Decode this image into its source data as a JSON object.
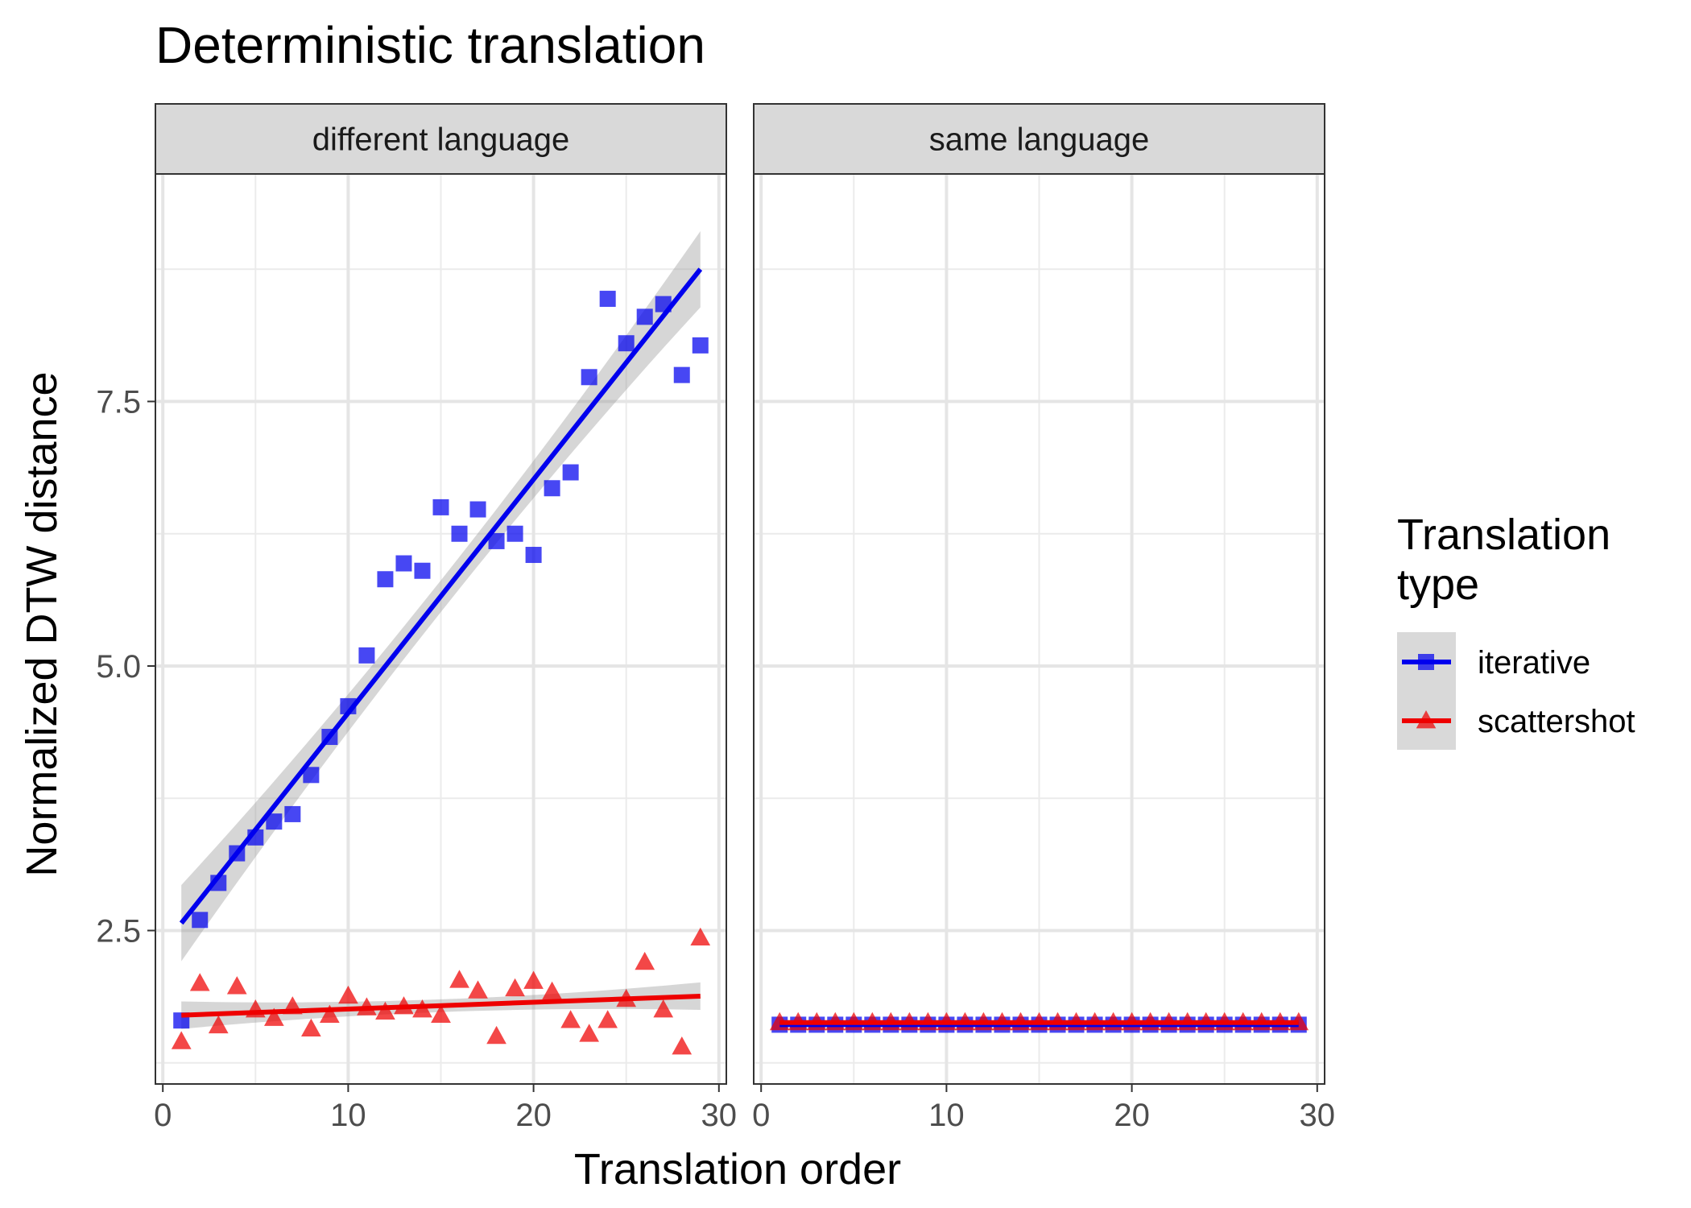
{
  "chart_data": {
    "type": "scatter",
    "title": "Deterministic translation",
    "xlabel": "Translation order",
    "ylabel": "Normalized DTW distance",
    "xlim": [
      -0.4,
      30.4
    ],
    "ylim": [
      1.05,
      9.65
    ],
    "x_ticks": [
      0,
      10,
      20,
      30
    ],
    "x_tick_labels": [
      "0",
      "10",
      "20",
      "30"
    ],
    "y_ticks": [
      2.5,
      5.0,
      7.5
    ],
    "y_tick_labels": [
      "2.5",
      "5.0",
      "7.5"
    ],
    "grid": true,
    "legend": {
      "title": "Translation\ntype",
      "title_lines": [
        "Translation",
        "type"
      ],
      "position": "right",
      "entries": [
        {
          "label": "iterative",
          "color": "#0000ee",
          "marker": "square"
        },
        {
          "label": "scattershot",
          "color": "#ee0000",
          "marker": "triangle"
        }
      ]
    },
    "colors": {
      "iterative": "#0000ee",
      "scattershot": "#ee0000",
      "ribbon": "#999999",
      "strip": "#d9d9d9"
    },
    "panels": [
      {
        "label": "different language",
        "series": [
          {
            "name": "iterative",
            "marker": "square",
            "x": [
              1,
              2,
              3,
              4,
              5,
              6,
              7,
              8,
              9,
              10,
              11,
              12,
              13,
              14,
              15,
              16,
              17,
              18,
              19,
              20,
              21,
              22,
              23,
              24,
              25,
              26,
              27,
              28,
              29
            ],
            "y": [
              1.65,
              2.6,
              2.95,
              3.23,
              3.38,
              3.53,
              3.6,
              3.97,
              4.33,
              4.62,
              5.1,
              5.82,
              5.97,
              5.9,
              6.5,
              6.25,
              6.48,
              6.18,
              6.25,
              6.05,
              6.68,
              6.83,
              7.73,
              8.47,
              8.05,
              8.3,
              8.42,
              7.75,
              8.03
            ],
            "fit": {
              "x": [
                1,
                29
              ],
              "y": [
                2.57,
                8.75
              ],
              "se_halfwidth_ends": 0.36,
              "se_halfwidth_mid": 0.15
            }
          },
          {
            "name": "scattershot",
            "marker": "triangle",
            "x": [
              1,
              2,
              3,
              4,
              5,
              6,
              7,
              8,
              9,
              10,
              11,
              12,
              13,
              14,
              15,
              16,
              17,
              18,
              19,
              20,
              21,
              22,
              23,
              24,
              25,
              26,
              27,
              28,
              29
            ],
            "y": [
              1.45,
              2.0,
              1.6,
              1.97,
              1.75,
              1.67,
              1.78,
              1.57,
              1.7,
              1.88,
              1.77,
              1.73,
              1.78,
              1.75,
              1.7,
              2.03,
              1.93,
              1.5,
              1.95,
              2.02,
              1.92,
              1.65,
              1.52,
              1.65,
              1.85,
              2.2,
              1.75,
              1.4,
              2.43
            ],
            "fit": {
              "x": [
                1,
                29
              ],
              "y": [
                1.7,
                1.88
              ],
              "se_halfwidth_ends": 0.13,
              "se_halfwidth_mid": 0.06
            }
          }
        ]
      },
      {
        "label": "same language",
        "series": [
          {
            "name": "iterative",
            "marker": "square",
            "x": [
              1,
              2,
              3,
              4,
              5,
              6,
              7,
              8,
              9,
              10,
              11,
              12,
              13,
              14,
              15,
              16,
              17,
              18,
              19,
              20,
              21,
              22,
              23,
              24,
              25,
              26,
              27,
              28,
              29
            ],
            "y": [
              1.61,
              1.61,
              1.61,
              1.61,
              1.61,
              1.61,
              1.61,
              1.61,
              1.61,
              1.61,
              1.61,
              1.61,
              1.61,
              1.61,
              1.61,
              1.61,
              1.61,
              1.61,
              1.61,
              1.61,
              1.61,
              1.61,
              1.61,
              1.61,
              1.61,
              1.61,
              1.61,
              1.61,
              1.61
            ],
            "fit": {
              "x": [
                1,
                29
              ],
              "y": [
                1.61,
                1.61
              ],
              "se_halfwidth_ends": 0,
              "se_halfwidth_mid": 0
            }
          },
          {
            "name": "scattershot",
            "marker": "triangle",
            "x": [
              1,
              2,
              3,
              4,
              5,
              6,
              7,
              8,
              9,
              10,
              11,
              12,
              13,
              14,
              15,
              16,
              17,
              18,
              19,
              20,
              21,
              22,
              23,
              24,
              25,
              26,
              27,
              28,
              29
            ],
            "y": [
              1.63,
              1.63,
              1.63,
              1.63,
              1.63,
              1.63,
              1.63,
              1.63,
              1.63,
              1.63,
              1.63,
              1.63,
              1.63,
              1.63,
              1.63,
              1.63,
              1.63,
              1.63,
              1.63,
              1.63,
              1.63,
              1.63,
              1.63,
              1.63,
              1.63,
              1.63,
              1.63,
              1.63,
              1.63
            ],
            "fit": {
              "x": [
                1,
                29
              ],
              "y": [
                1.63,
                1.63
              ],
              "se_halfwidth_ends": 0,
              "se_halfwidth_mid": 0
            }
          }
        ]
      }
    ]
  }
}
